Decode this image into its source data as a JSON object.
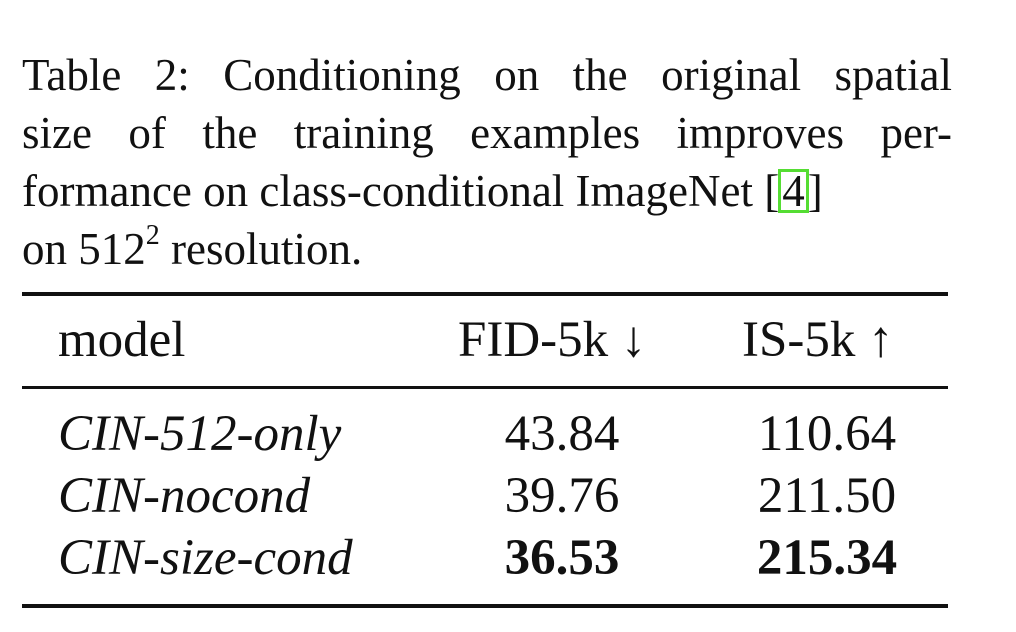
{
  "caption": {
    "line1": "Table 2:  Conditioning on the original spatial",
    "line2": "size of the training examples improves per-",
    "line3_before": "formance on class-conditional ImageNet [",
    "line3_cite": "4",
    "line3_after": "]",
    "line4_before": "on 512",
    "line4_sup": "2",
    "line4_after": " resolution."
  },
  "table": {
    "headers": {
      "model": "model",
      "fid": "FID-5k ↓",
      "is": "IS-5k ↑"
    },
    "rows": [
      {
        "model": "CIN-512-only",
        "fid": "43.84",
        "is": "110.64"
      },
      {
        "model": "CIN-nocond",
        "fid": "39.76",
        "is": "211.50"
      },
      {
        "model": "CIN-size-cond",
        "fid": "36.53",
        "is": "215.34"
      }
    ]
  }
}
